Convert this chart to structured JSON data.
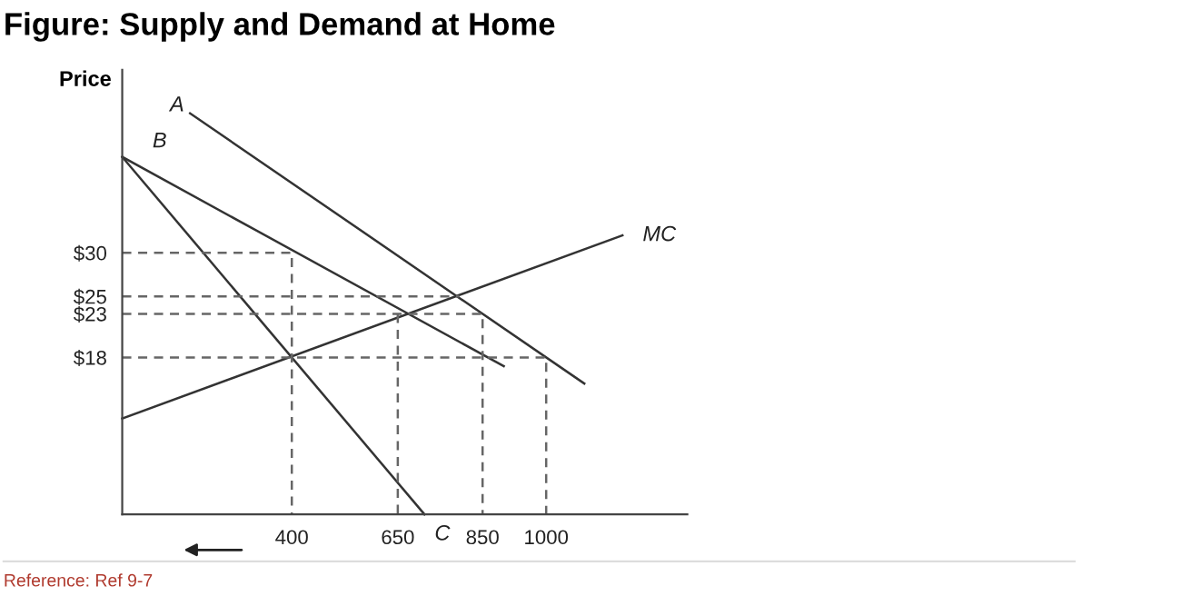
{
  "chart_data": {
    "type": "line",
    "title": "Figure: Supply and Demand at Home",
    "ylabel": "Price",
    "xlim": [
      0,
      1333
    ],
    "ylim": [
      0,
      51
    ],
    "xticks": [
      400,
      650,
      850,
      1000
    ],
    "yticks": [
      {
        "value": 30,
        "label": "$30"
      },
      {
        "value": 25,
        "label": "$25"
      },
      {
        "value": 23,
        "label": "$23"
      },
      {
        "value": 18,
        "label": "$18"
      }
    ],
    "grid": false,
    "legend": false,
    "marker": "none",
    "series": [
      {
        "name": "A",
        "color": "#333333",
        "line_style": "solid",
        "x": [
          160,
          1090
        ],
        "values": [
          46,
          15
        ]
      },
      {
        "name": "B",
        "color": "#333333",
        "line_style": "solid",
        "x": [
          0,
          900
        ],
        "values": [
          41,
          17
        ]
      },
      {
        "name": "C",
        "color": "#333333",
        "line_style": "solid",
        "x": [
          0,
          713
        ],
        "values": [
          41,
          0
        ]
      },
      {
        "name": "MC",
        "color": "#333333",
        "line_style": "solid",
        "x": [
          0,
          1180
        ],
        "values": [
          11,
          32
        ]
      },
      {
        "color": "#666666",
        "line_style": "dashed",
        "x": [
          0,
          400,
          400
        ],
        "values": [
          30,
          30,
          0
        ]
      },
      {
        "color": "#666666",
        "line_style": "dashed",
        "x": [
          0,
          795
        ],
        "values": [
          25,
          25
        ]
      },
      {
        "color": "#666666",
        "line_style": "dashed",
        "x": [
          0,
          850,
          850
        ],
        "values": [
          23,
          23,
          0
        ]
      },
      {
        "color": "#666666",
        "line_style": "dashed",
        "x": [
          650,
          650
        ],
        "values": [
          23,
          0
        ]
      },
      {
        "color": "#666666",
        "line_style": "dashed",
        "x": [
          0,
          1000,
          1000
        ],
        "values": [
          18,
          18,
          0
        ]
      }
    ],
    "annotations": [
      "Reference: Ref 9-7"
    ]
  }
}
